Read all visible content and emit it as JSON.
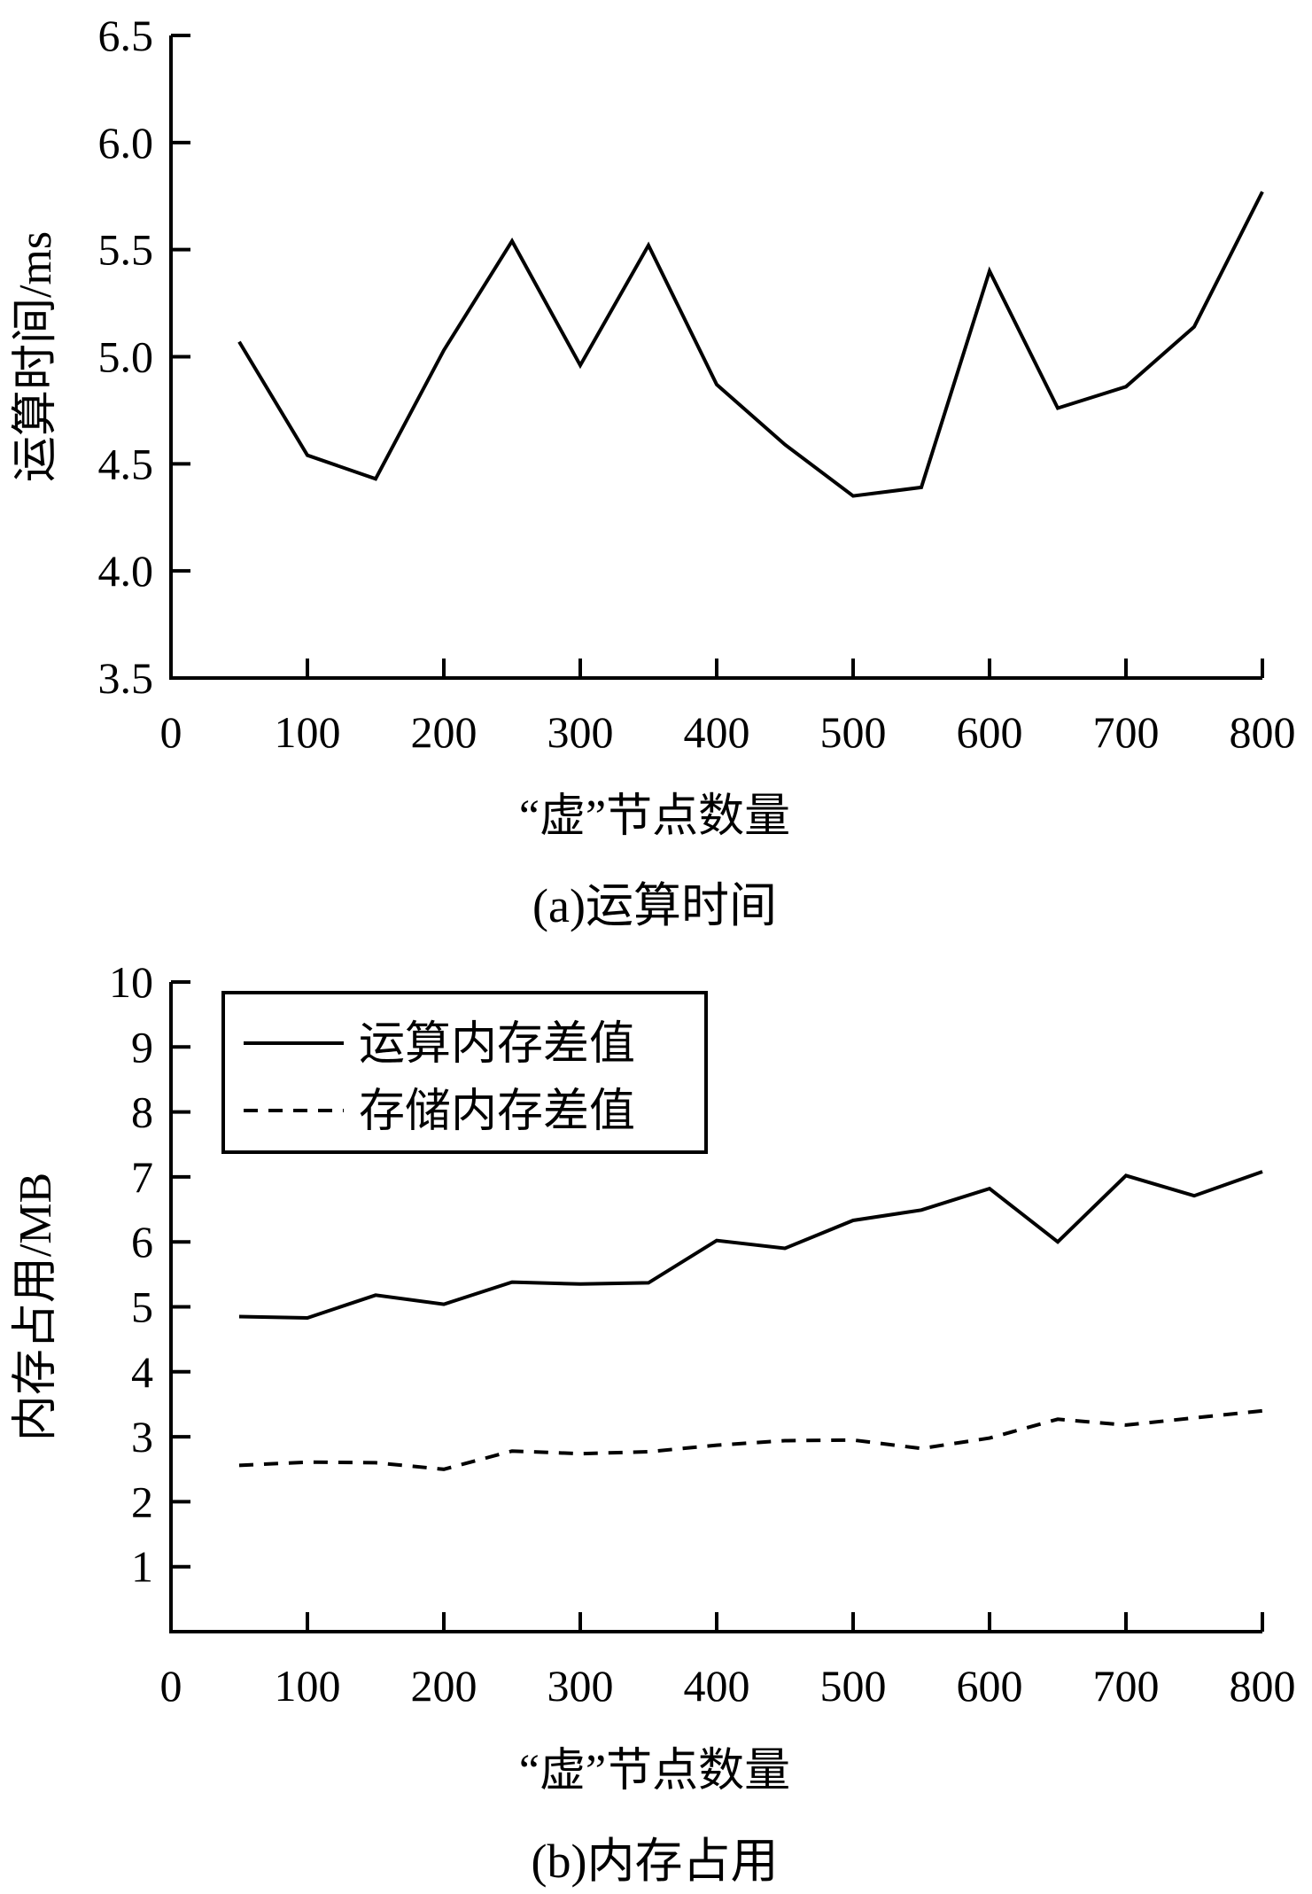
{
  "chart_data": [
    {
      "type": "line",
      "caption": "(a)运算时间",
      "xlabel": "“虚”节点数量",
      "ylabel": "运算时间/ms",
      "xlim": [
        0,
        800
      ],
      "ylim": [
        3.5,
        6.5
      ],
      "x_ticks": [
        "0",
        "100",
        "200",
        "300",
        "400",
        "500",
        "600",
        "700",
        "800"
      ],
      "y_ticks": [
        "3.5",
        "4.0",
        "4.5",
        "5.0",
        "5.5",
        "6.0",
        "6.5"
      ],
      "grid": false,
      "x": [
        50,
        100,
        150,
        200,
        250,
        300,
        350,
        400,
        450,
        500,
        550,
        600,
        650,
        700,
        750,
        800
      ],
      "series": [
        {
          "dash": "solid",
          "values": [
            5.07,
            4.54,
            4.43,
            5.03,
            5.54,
            4.96,
            5.52,
            4.87,
            4.59,
            4.35,
            4.39,
            5.4,
            4.76,
            4.86,
            5.14,
            5.77
          ]
        }
      ]
    },
    {
      "type": "line",
      "caption": "(b)内存占用",
      "xlabel": "“虚”节点数量",
      "ylabel": "内存占用/MB",
      "xlim": [
        0,
        800
      ],
      "ylim": [
        0,
        10
      ],
      "x_ticks": [
        "0",
        "100",
        "200",
        "300",
        "400",
        "500",
        "600",
        "700",
        "800"
      ],
      "y_ticks": [
        "1",
        "2",
        "3",
        "4",
        "5",
        "6",
        "7",
        "8",
        "9",
        "10"
      ],
      "grid": false,
      "legend": "top-left",
      "x": [
        50,
        100,
        150,
        200,
        250,
        300,
        350,
        400,
        450,
        500,
        550,
        600,
        650,
        700,
        750,
        800
      ],
      "series": [
        {
          "name": "运算内存差值",
          "dash": "solid",
          "values": [
            4.85,
            4.83,
            5.18,
            5.04,
            5.38,
            5.35,
            5.37,
            6.02,
            5.9,
            6.33,
            6.49,
            6.82,
            6.0,
            7.02,
            6.71,
            7.08
          ]
        },
        {
          "name": "存储内存差值",
          "dash": "dashed",
          "values": [
            2.56,
            2.61,
            2.6,
            2.5,
            2.78,
            2.74,
            2.77,
            2.87,
            2.94,
            2.95,
            2.82,
            2.98,
            3.27,
            3.18,
            3.29,
            3.4
          ]
        }
      ]
    }
  ]
}
